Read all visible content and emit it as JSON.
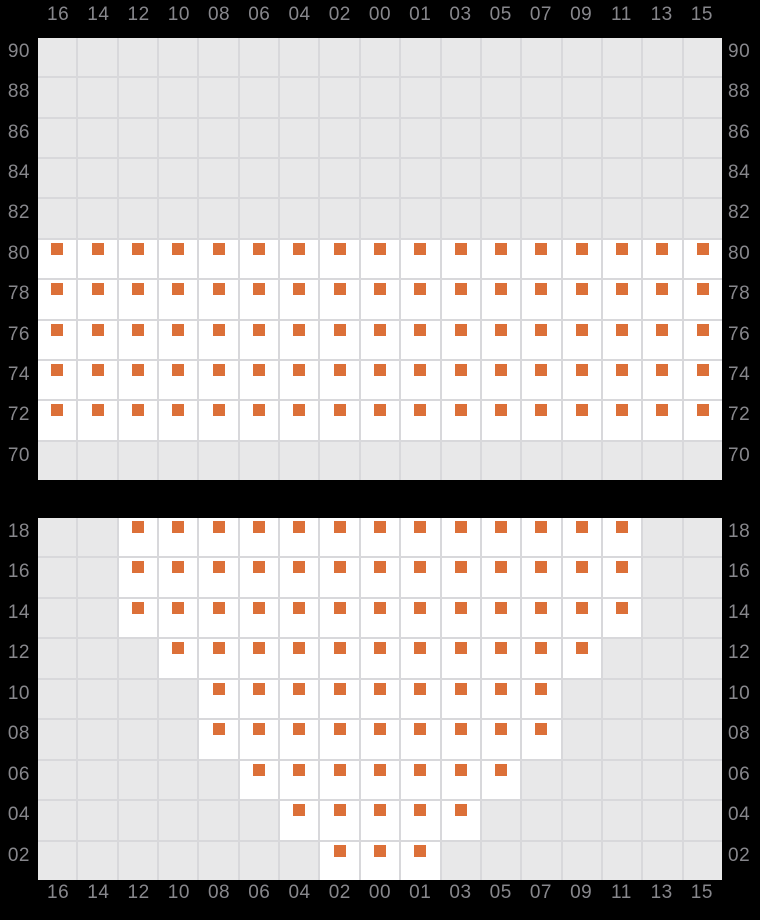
{
  "colors": {
    "background": "#000000",
    "cell_empty": "#e8e8e9",
    "cell_filled": "#ffffff",
    "gridline": "#d8d8db",
    "marker": "#dc7038",
    "label": "#87878c"
  },
  "chart_data": {
    "type": "heatmap",
    "title": "",
    "legend": "none",
    "grid": "on",
    "marker_shape": "square",
    "columns": [
      "16",
      "14",
      "12",
      "10",
      "08",
      "06",
      "04",
      "02",
      "00",
      "01",
      "03",
      "05",
      "07",
      "09",
      "11",
      "13",
      "15"
    ],
    "x_axis_label_positions": [
      "top",
      "bottom"
    ],
    "y_axis_label_positions": [
      "left",
      "right"
    ],
    "charts": [
      {
        "id": "top",
        "rows": [
          {
            "label": "90",
            "marked_columns": []
          },
          {
            "label": "88",
            "marked_columns": []
          },
          {
            "label": "86",
            "marked_columns": []
          },
          {
            "label": "84",
            "marked_columns": []
          },
          {
            "label": "82",
            "marked_columns": []
          },
          {
            "label": "80",
            "marked_columns": [
              "16",
              "14",
              "12",
              "10",
              "08",
              "06",
              "04",
              "02",
              "00",
              "01",
              "03",
              "05",
              "07",
              "09",
              "11",
              "13",
              "15"
            ]
          },
          {
            "label": "78",
            "marked_columns": [
              "16",
              "14",
              "12",
              "10",
              "08",
              "06",
              "04",
              "02",
              "00",
              "01",
              "03",
              "05",
              "07",
              "09",
              "11",
              "13",
              "15"
            ]
          },
          {
            "label": "76",
            "marked_columns": [
              "16",
              "14",
              "12",
              "10",
              "08",
              "06",
              "04",
              "02",
              "00",
              "01",
              "03",
              "05",
              "07",
              "09",
              "11",
              "13",
              "15"
            ]
          },
          {
            "label": "74",
            "marked_columns": [
              "16",
              "14",
              "12",
              "10",
              "08",
              "06",
              "04",
              "02",
              "00",
              "01",
              "03",
              "05",
              "07",
              "09",
              "11",
              "13",
              "15"
            ]
          },
          {
            "label": "72",
            "marked_columns": [
              "16",
              "14",
              "12",
              "10",
              "08",
              "06",
              "04",
              "02",
              "00",
              "01",
              "03",
              "05",
              "07",
              "09",
              "11",
              "13",
              "15"
            ]
          },
          {
            "label": "70",
            "marked_columns": []
          }
        ]
      },
      {
        "id": "bottom",
        "rows": [
          {
            "label": "18",
            "marked_columns": [
              "12",
              "10",
              "08",
              "06",
              "04",
              "02",
              "00",
              "01",
              "03",
              "05",
              "07",
              "09",
              "11"
            ]
          },
          {
            "label": "16",
            "marked_columns": [
              "12",
              "10",
              "08",
              "06",
              "04",
              "02",
              "00",
              "01",
              "03",
              "05",
              "07",
              "09",
              "11"
            ]
          },
          {
            "label": "14",
            "marked_columns": [
              "12",
              "10",
              "08",
              "06",
              "04",
              "02",
              "00",
              "01",
              "03",
              "05",
              "07",
              "09",
              "11"
            ]
          },
          {
            "label": "12",
            "marked_columns": [
              "10",
              "08",
              "06",
              "04",
              "02",
              "00",
              "01",
              "03",
              "05",
              "07",
              "09"
            ]
          },
          {
            "label": "10",
            "marked_columns": [
              "08",
              "06",
              "04",
              "02",
              "00",
              "01",
              "03",
              "05",
              "07"
            ]
          },
          {
            "label": "08",
            "marked_columns": [
              "08",
              "06",
              "04",
              "02",
              "00",
              "01",
              "03",
              "05",
              "07"
            ]
          },
          {
            "label": "06",
            "marked_columns": [
              "06",
              "04",
              "02",
              "00",
              "01",
              "03",
              "05"
            ]
          },
          {
            "label": "04",
            "marked_columns": [
              "04",
              "02",
              "00",
              "01",
              "03"
            ]
          },
          {
            "label": "02",
            "marked_columns": [
              "02",
              "00",
              "01"
            ]
          }
        ]
      }
    ]
  }
}
